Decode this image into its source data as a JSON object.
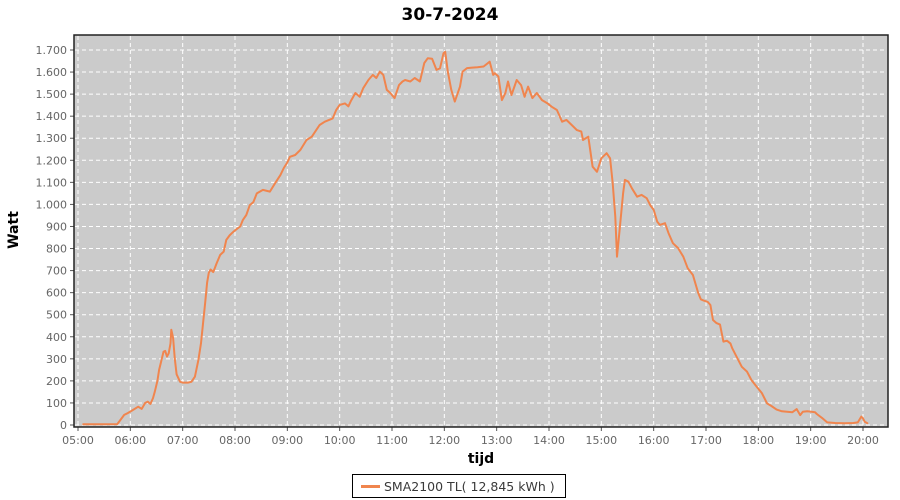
{
  "chart_data": {
    "type": "line",
    "title": "30-7-2024",
    "xlabel": "tijd",
    "ylabel": "Watt",
    "plot_background": "#CBCBCB",
    "grid": {
      "visible": true,
      "style": "dashed",
      "color": "#FFFFFF"
    },
    "x_axis": {
      "unit": "time of day",
      "range_minutes_after_0500": [
        0,
        900
      ],
      "tick_labels": [
        "05:00",
        "06:00",
        "07:00",
        "08:00",
        "09:00",
        "10:00",
        "11:00",
        "12:00",
        "13:00",
        "14:00",
        "15:00",
        "16:00",
        "17:00",
        "18:00",
        "19:00",
        "20:00"
      ]
    },
    "y_axis": {
      "unit": "Watt",
      "range": [
        0,
        1700
      ],
      "tick_step": 100,
      "tick_labels": [
        "0",
        "100",
        "200",
        "300",
        "400",
        "500",
        "600",
        "700",
        "800",
        "900",
        "1.000",
        "1.100",
        "1.200",
        "1.300",
        "1.400",
        "1.500",
        "1.600",
        "1.700"
      ]
    },
    "legend": {
      "position": "bottom-center",
      "entries": [
        {
          "label": "SMA2100 TL( 12,845 kWh )",
          "color": "#F0854E"
        }
      ]
    },
    "series": [
      {
        "name": "SMA2100 TL( 12,845 kWh )",
        "color": "#F0854E",
        "x_unit": "minutes_after_05:00",
        "points": [
          [
            6,
            3
          ],
          [
            25,
            3
          ],
          [
            45,
            4
          ],
          [
            50,
            30
          ],
          [
            53,
            46
          ],
          [
            57,
            54
          ],
          [
            63,
            68
          ],
          [
            69,
            83
          ],
          [
            73,
            73
          ],
          [
            77,
            100
          ],
          [
            80,
            106
          ],
          [
            83,
            95
          ],
          [
            86,
            122
          ],
          [
            88,
            151
          ],
          [
            91,
            200
          ],
          [
            93,
            250
          ],
          [
            96,
            298
          ],
          [
            98,
            332
          ],
          [
            100,
            336
          ],
          [
            102,
            310
          ],
          [
            104,
            325
          ],
          [
            106,
            370
          ],
          [
            107,
            432
          ],
          [
            109,
            395
          ],
          [
            111,
            300
          ],
          [
            113,
            230
          ],
          [
            117,
            196
          ],
          [
            120,
            192
          ],
          [
            126,
            192
          ],
          [
            130,
            196
          ],
          [
            134,
            219
          ],
          [
            138,
            295
          ],
          [
            141,
            371
          ],
          [
            143,
            446
          ],
          [
            146,
            560
          ],
          [
            148,
            645
          ],
          [
            150,
            690
          ],
          [
            152,
            705
          ],
          [
            155,
            693
          ],
          [
            157,
            712
          ],
          [
            159,
            734
          ],
          [
            163,
            771
          ],
          [
            167,
            786
          ],
          [
            170,
            839
          ],
          [
            174,
            861
          ],
          [
            178,
            876
          ],
          [
            182,
            888
          ],
          [
            186,
            900
          ],
          [
            189,
            929
          ],
          [
            193,
            952
          ],
          [
            197,
            997
          ],
          [
            201,
            1010
          ],
          [
            205,
            1050
          ],
          [
            212,
            1066
          ],
          [
            220,
            1058
          ],
          [
            226,
            1096
          ],
          [
            232,
            1133
          ],
          [
            236,
            1165
          ],
          [
            240,
            1190
          ],
          [
            243,
            1216
          ],
          [
            249,
            1224
          ],
          [
            255,
            1247
          ],
          [
            262,
            1292
          ],
          [
            268,
            1307
          ],
          [
            277,
            1360
          ],
          [
            283,
            1375
          ],
          [
            292,
            1390
          ],
          [
            296,
            1428
          ],
          [
            300,
            1451
          ],
          [
            306,
            1458
          ],
          [
            310,
            1445
          ],
          [
            313,
            1470
          ],
          [
            318,
            1505
          ],
          [
            323,
            1488
          ],
          [
            327,
            1527
          ],
          [
            333,
            1564
          ],
          [
            338,
            1587
          ],
          [
            342,
            1573
          ],
          [
            346,
            1602
          ],
          [
            350,
            1587
          ],
          [
            354,
            1519
          ],
          [
            358,
            1505
          ],
          [
            363,
            1482
          ],
          [
            368,
            1541
          ],
          [
            372,
            1557
          ],
          [
            375,
            1564
          ],
          [
            381,
            1557
          ],
          [
            386,
            1573
          ],
          [
            392,
            1557
          ],
          [
            397,
            1641
          ],
          [
            401,
            1663
          ],
          [
            406,
            1660
          ],
          [
            411,
            1610
          ],
          [
            415,
            1617
          ],
          [
            419,
            1685
          ],
          [
            421,
            1692
          ],
          [
            424,
            1602
          ],
          [
            428,
            1519
          ],
          [
            432,
            1466
          ],
          [
            438,
            1534
          ],
          [
            441,
            1602
          ],
          [
            446,
            1618
          ],
          [
            452,
            1620
          ],
          [
            458,
            1622
          ],
          [
            465,
            1625
          ],
          [
            472,
            1647
          ],
          [
            476,
            1587
          ],
          [
            478,
            1595
          ],
          [
            482,
            1580
          ],
          [
            486,
            1473
          ],
          [
            490,
            1505
          ],
          [
            493,
            1557
          ],
          [
            497,
            1496
          ],
          [
            503,
            1564
          ],
          [
            508,
            1541
          ],
          [
            512,
            1488
          ],
          [
            516,
            1534
          ],
          [
            521,
            1482
          ],
          [
            526,
            1505
          ],
          [
            532,
            1473
          ],
          [
            538,
            1459
          ],
          [
            543,
            1443
          ],
          [
            549,
            1428
          ],
          [
            555,
            1375
          ],
          [
            560,
            1383
          ],
          [
            566,
            1360
          ],
          [
            572,
            1337
          ],
          [
            577,
            1330
          ],
          [
            579,
            1292
          ],
          [
            585,
            1307
          ],
          [
            590,
            1171
          ],
          [
            595,
            1148
          ],
          [
            600,
            1209
          ],
          [
            606,
            1232
          ],
          [
            610,
            1209
          ],
          [
            613,
            1096
          ],
          [
            616,
            944
          ],
          [
            618,
            763
          ],
          [
            621,
            884
          ],
          [
            625,
            1050
          ],
          [
            627,
            1111
          ],
          [
            631,
            1103
          ],
          [
            635,
            1073
          ],
          [
            641,
            1035
          ],
          [
            646,
            1043
          ],
          [
            652,
            1028
          ],
          [
            656,
            997
          ],
          [
            660,
            975
          ],
          [
            664,
            922
          ],
          [
            667,
            907
          ],
          [
            673,
            915
          ],
          [
            677,
            870
          ],
          [
            682,
            824
          ],
          [
            688,
            802
          ],
          [
            694,
            763
          ],
          [
            699,
            711
          ],
          [
            705,
            680
          ],
          [
            708,
            640
          ],
          [
            711,
            600
          ],
          [
            714,
            570
          ],
          [
            717,
            565
          ],
          [
            722,
            558
          ],
          [
            725,
            544
          ],
          [
            728,
            476
          ],
          [
            732,
            462
          ],
          [
            736,
            455
          ],
          [
            740,
            378
          ],
          [
            744,
            382
          ],
          [
            748,
            370
          ],
          [
            750,
            348
          ],
          [
            755,
            310
          ],
          [
            761,
            264
          ],
          [
            767,
            242
          ],
          [
            772,
            204
          ],
          [
            778,
            174
          ],
          [
            784,
            145
          ],
          [
            790,
            98
          ],
          [
            795,
            86
          ],
          [
            801,
            70
          ],
          [
            807,
            62
          ],
          [
            813,
            60
          ],
          [
            819,
            58
          ],
          [
            824,
            72
          ],
          [
            828,
            45
          ],
          [
            831,
            60
          ],
          [
            836,
            62
          ],
          [
            841,
            60
          ],
          [
            845,
            58
          ],
          [
            847,
            50
          ],
          [
            853,
            32
          ],
          [
            859,
            12
          ],
          [
            868,
            9
          ],
          [
            879,
            8
          ],
          [
            889,
            9
          ],
          [
            894,
            12
          ],
          [
            898,
            38
          ],
          [
            900,
            30
          ],
          [
            902,
            15
          ],
          [
            905,
            8
          ]
        ]
      }
    ]
  }
}
